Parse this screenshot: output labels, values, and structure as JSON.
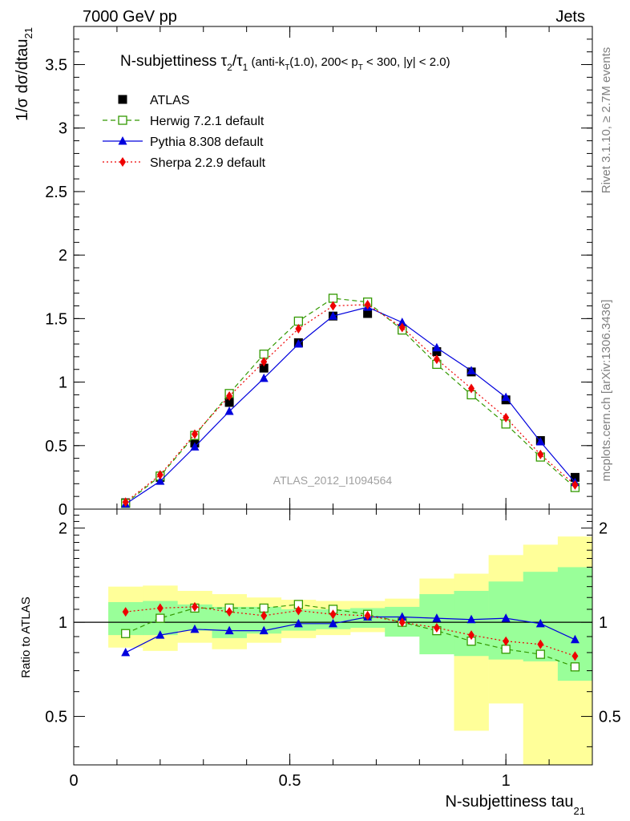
{
  "header": {
    "left": "7000 GeV pp",
    "right": "Jets"
  },
  "side_labels": {
    "rivet": "Rivet 3.1.10, ≥ 2.7M events",
    "mcplots": "mcplots.cern.ch [arXiv:1306.3436]"
  },
  "chart_data": [
    {
      "type": "line",
      "panel": "main",
      "title": {
        "main": "N-subjettiness τ",
        "sub2": "2",
        "slash": "/τ",
        "sub1": "1",
        "detail_a": " (anti-k",
        "detail_t": "T",
        "detail_b": "(1.0), 200< p",
        "detail_t2": "T",
        "detail_c": " < 300, |y| < 2.0)"
      },
      "ylabel": {
        "main": "1/σ dσ/dtau",
        "sub": "21"
      },
      "watermark": "ATLAS_2012_I1094564",
      "xlim": [
        0,
        1.2
      ],
      "ylim": [
        0,
        3.8
      ],
      "yticks": [
        {
          "value": 0,
          "label": "0"
        },
        {
          "value": 0.5,
          "label": "0.5"
        },
        {
          "value": 1,
          "label": "1"
        },
        {
          "value": 1.5,
          "label": "1.5"
        },
        {
          "value": 2,
          "label": "2"
        },
        {
          "value": 2.5,
          "label": "2.5"
        },
        {
          "value": 3,
          "label": "3"
        },
        {
          "value": 3.5,
          "label": "3.5"
        }
      ],
      "x": [
        0.12,
        0.2,
        0.28,
        0.36,
        0.44,
        0.52,
        0.6,
        0.68,
        0.76,
        0.84,
        0.92,
        1.0,
        1.08,
        1.16
      ],
      "series": [
        {
          "name": "ATLAS",
          "color": "#000000",
          "marker": "square-filled",
          "line": "none",
          "values": [
            0.05,
            0.25,
            0.52,
            0.84,
            1.11,
            1.31,
            1.52,
            1.54,
            1.42,
            1.24,
            1.08,
            0.86,
            0.54,
            0.25
          ]
        },
        {
          "name": "Herwig 7.2.1 default",
          "color": "#339900",
          "marker": "square-open",
          "line": "dashed",
          "values": [
            0.045,
            0.26,
            0.58,
            0.91,
            1.22,
            1.48,
            1.66,
            1.63,
            1.41,
            1.14,
            0.9,
            0.67,
            0.41,
            0.17
          ]
        },
        {
          "name": "Pythia 8.308 default",
          "color": "#0000dd",
          "marker": "triangle-filled",
          "line": "solid",
          "values": [
            0.04,
            0.22,
            0.49,
            0.77,
            1.03,
            1.3,
            1.52,
            1.59,
            1.47,
            1.27,
            1.09,
            0.88,
            0.53,
            0.21
          ]
        },
        {
          "name": "Sherpa 2.2.9 default",
          "color": "#ee0000",
          "marker": "diamond-filled",
          "line": "dotted",
          "values": [
            0.055,
            0.27,
            0.59,
            0.89,
            1.16,
            1.42,
            1.6,
            1.61,
            1.43,
            1.18,
            0.95,
            0.72,
            0.43,
            0.19
          ]
        }
      ],
      "legend": "top-left"
    },
    {
      "type": "line",
      "panel": "ratio",
      "ylabel": "Ratio to ATLAS",
      "xlabel": {
        "main": "N-subjettiness tau",
        "sub": "21"
      },
      "xlim": [
        0,
        1.2
      ],
      "ylim": [
        0.35,
        2.3
      ],
      "xticks": [
        {
          "value": 0,
          "label": "0"
        },
        {
          "value": 0.5,
          "label": "0.5"
        },
        {
          "value": 1,
          "label": "1"
        }
      ],
      "yticks": [
        {
          "value": 0.5,
          "label": "0.5"
        },
        {
          "value": 1,
          "label": "1"
        },
        {
          "value": 2,
          "label": "2"
        }
      ],
      "bands": {
        "edges": [
          0.08,
          0.16,
          0.24,
          0.32,
          0.4,
          0.48,
          0.56,
          0.64,
          0.72,
          0.8,
          0.88,
          0.96,
          1.04,
          1.12,
          1.2
        ],
        "outer": {
          "color": "#ffff99",
          "lower": [
            0.83,
            0.81,
            0.86,
            0.82,
            0.86,
            0.89,
            0.91,
            0.93,
            0.94,
            0.85,
            0.45,
            0.55,
            0.34,
            0.34
          ],
          "upper": [
            1.3,
            1.31,
            1.26,
            1.23,
            1.2,
            1.18,
            1.17,
            1.17,
            1.19,
            1.38,
            1.43,
            1.64,
            1.77,
            1.88
          ]
        },
        "inner": {
          "color": "#99ff99",
          "lower": [
            0.91,
            0.91,
            0.94,
            0.89,
            0.92,
            0.94,
            0.95,
            0.96,
            0.9,
            0.79,
            0.78,
            0.76,
            0.75,
            0.65
          ],
          "upper": [
            1.16,
            1.17,
            1.14,
            1.12,
            1.12,
            1.1,
            1.1,
            1.11,
            1.12,
            1.23,
            1.26,
            1.35,
            1.45,
            1.5
          ]
        }
      },
      "x": [
        0.12,
        0.2,
        0.28,
        0.36,
        0.44,
        0.52,
        0.6,
        0.68,
        0.76,
        0.84,
        0.92,
        1.0,
        1.08,
        1.16
      ],
      "series": [
        {
          "name": "Herwig 7.2.1 default",
          "color": "#339900",
          "marker": "square-open",
          "line": "dashed",
          "values": [
            0.92,
            1.03,
            1.11,
            1.11,
            1.11,
            1.14,
            1.1,
            1.06,
            1.0,
            0.94,
            0.87,
            0.82,
            0.79,
            0.72
          ]
        },
        {
          "name": "Pythia 8.308 default",
          "color": "#0000dd",
          "marker": "triangle-filled",
          "line": "solid",
          "values": [
            0.8,
            0.91,
            0.95,
            0.94,
            0.94,
            0.99,
            0.99,
            1.04,
            1.04,
            1.03,
            1.02,
            1.03,
            0.99,
            0.88
          ]
        },
        {
          "name": "Sherpa 2.2.9 default",
          "color": "#ee0000",
          "marker": "diamond-filled",
          "line": "dotted",
          "values": [
            1.08,
            1.11,
            1.12,
            1.08,
            1.05,
            1.09,
            1.06,
            1.05,
            1.0,
            0.96,
            0.91,
            0.87,
            0.85,
            0.78
          ]
        }
      ]
    }
  ]
}
